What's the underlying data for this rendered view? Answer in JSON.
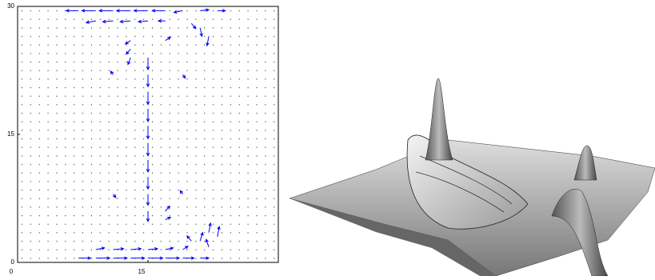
{
  "chart_data": [
    {
      "type": "quiver",
      "color": "#0000ff",
      "xlim": [
        0,
        30
      ],
      "ylim": [
        0,
        30
      ],
      "xticks": [
        0,
        15
      ],
      "yticks": [
        0,
        15,
        30
      ],
      "x": [
        7,
        9,
        11,
        13,
        15,
        17,
        19,
        21,
        23,
        9,
        11,
        13,
        15,
        17,
        21,
        22,
        15,
        15,
        15,
        15,
        15,
        15,
        15,
        15,
        15,
        15,
        13,
        13,
        13,
        17,
        17,
        17,
        11,
        11,
        19,
        19,
        7,
        9,
        11,
        13,
        15,
        17,
        19,
        21,
        9,
        11,
        13,
        15,
        17,
        19,
        21,
        22,
        22,
        23,
        20,
        20
      ],
      "y": [
        29.5,
        29.5,
        29.5,
        29.5,
        29.5,
        29.5,
        29.5,
        29.5,
        29.5,
        28.3,
        28.3,
        28.3,
        28.3,
        28.3,
        27.5,
        26.5,
        24,
        22,
        20,
        18,
        16,
        14,
        12,
        10,
        8,
        6,
        26,
        25,
        24,
        26,
        6,
        5,
        22,
        8,
        22,
        8,
        0.5,
        0.5,
        0.5,
        0.5,
        0.5,
        0.5,
        0.5,
        0.5,
        1.5,
        1.5,
        1.5,
        1.5,
        1.5,
        1.5,
        2.5,
        3.5,
        1.8,
        3,
        2.5,
        28
      ],
      "u": [
        -1.4,
        -1.6,
        -1.6,
        -1.6,
        -1.6,
        -1.5,
        -1.0,
        1.0,
        0.9,
        -1.1,
        -1.2,
        -1.2,
        -1.1,
        -0.8,
        0.2,
        -0.2,
        0,
        0,
        0,
        0,
        0,
        0,
        0,
        0,
        0,
        0,
        -0.6,
        -0.5,
        -0.3,
        0.6,
        0.5,
        0.6,
        -0.3,
        0.3,
        0.3,
        -0.3,
        1.4,
        1.6,
        1.6,
        1.6,
        1.7,
        1.6,
        1.3,
        1.0,
        1.0,
        1.2,
        1.2,
        1.1,
        0.9,
        0.6,
        0.3,
        0.2,
        -0.3,
        0.2,
        -0.5,
        0.5
      ],
      "v": [
        0,
        0,
        0,
        0,
        0,
        0,
        -0.2,
        0.1,
        0,
        -0.2,
        -0.1,
        -0.1,
        -0.1,
        0,
        -1.0,
        -1.1,
        -1.4,
        -1.4,
        -1.5,
        -1.5,
        -1.5,
        -1.5,
        -1.4,
        -1.4,
        -1.3,
        -1.2,
        -0.4,
        -0.6,
        -0.8,
        0.4,
        0.6,
        0.3,
        0.4,
        -0.4,
        -0.4,
        0.4,
        0,
        0,
        0,
        0,
        0,
        0,
        0,
        0,
        0.2,
        0.1,
        0.1,
        0.1,
        0.2,
        0.4,
        1.0,
        1.1,
        0.9,
        1.2,
        0.6,
        -0.6
      ]
    },
    {
      "type": "surface"
    }
  ]
}
